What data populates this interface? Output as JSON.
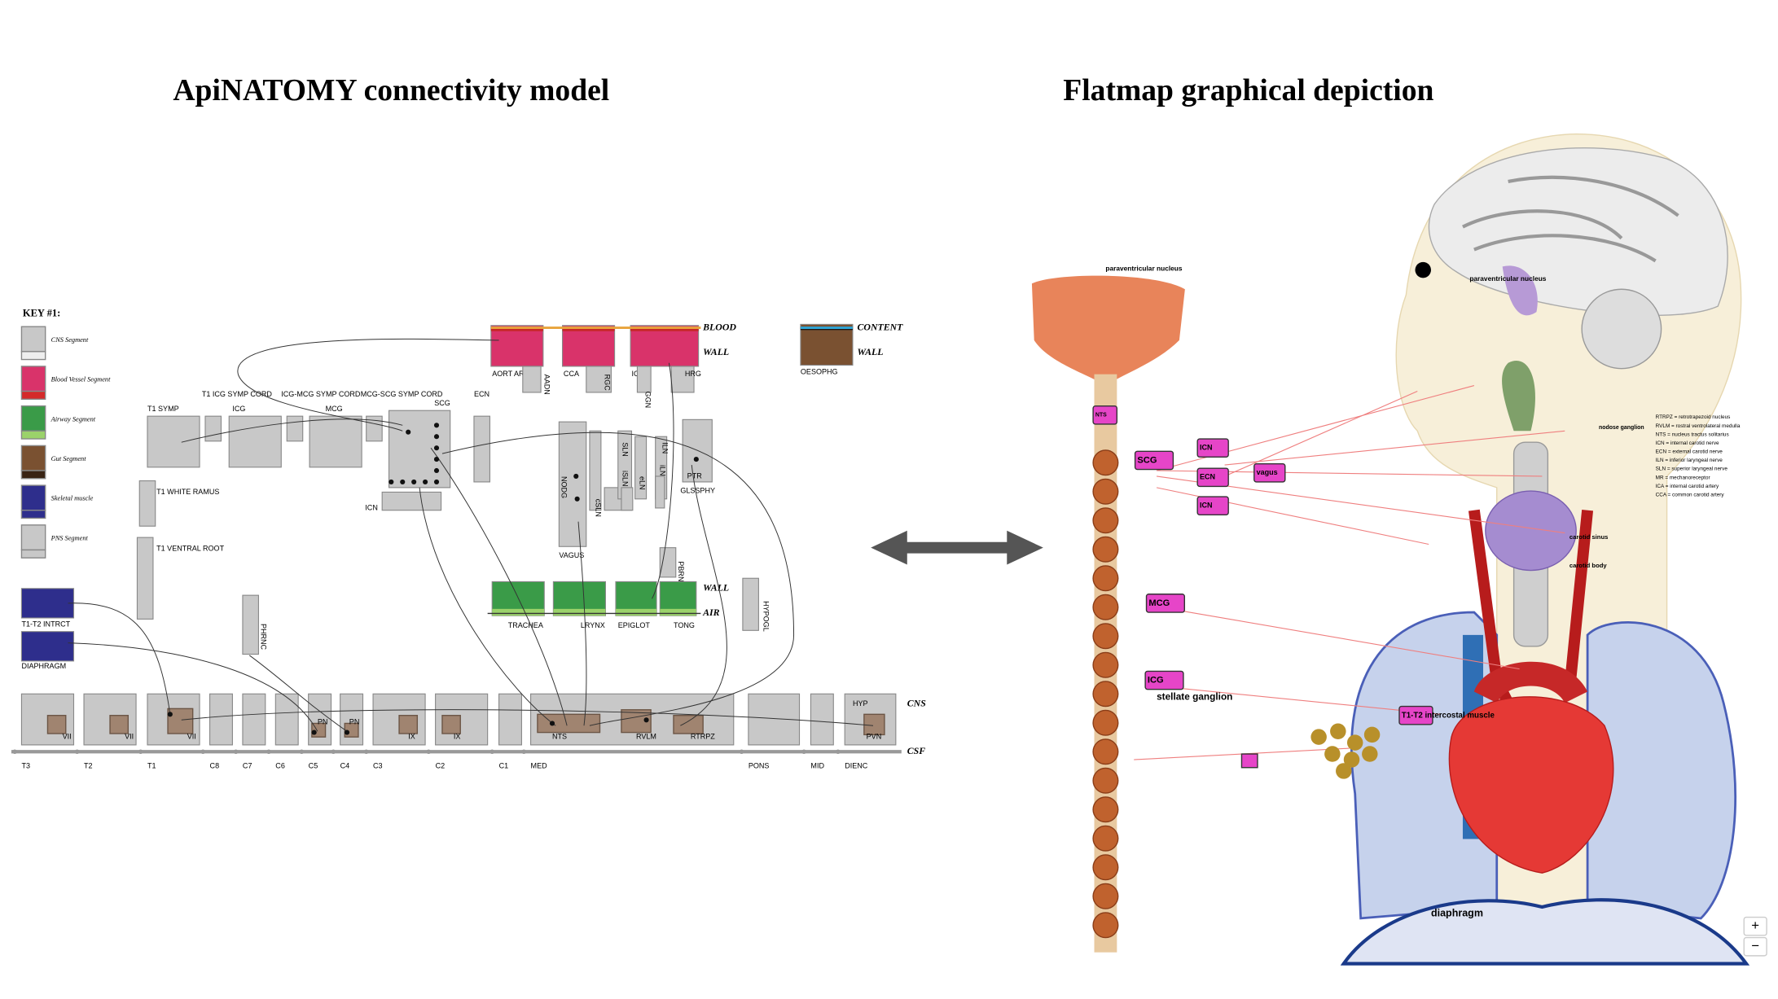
{
  "titles": {
    "left": "ApiNATOMY connectivity model",
    "right": "Flatmap graphical depiction"
  },
  "key": {
    "title": "KEY #1:",
    "items": [
      "CNS Segment",
      "Blood Vessel Segment",
      "Airway Segment",
      "Gut Segment",
      "Skeletal muscle",
      "PNS Segment"
    ]
  },
  "model": {
    "nodes": [
      "T1 SYMP",
      "T1 ICG SYMP CORD",
      "ICG",
      "ICG-MCG SYMP CORD",
      "MCG",
      "MCG-SCG SYMP CORD",
      "SCG",
      "ECN",
      "ICN",
      "AORT ARCH",
      "AADN",
      "CCA",
      "RGC",
      "ICA",
      "GGN",
      "HRG",
      "OESOPHG",
      "VAGUS",
      "NODG",
      "cSLN",
      "SLN",
      "iSLN",
      "eLN",
      "iLN",
      "ILN",
      "PTR",
      "GLSSPHY",
      "PBRN",
      "HYPOGL",
      "TRACHEA",
      "LRYNX",
      "EPIGLOT",
      "TONG",
      "T1 WHITE RAMUS",
      "T1 VENTRAL ROOT",
      "PHRNC",
      "T1-T2 INTRCT",
      "DIAPHRAGM"
    ],
    "layers": {
      "blood": "BLOOD",
      "vessel_wall": "WALL",
      "content": "CONTENT",
      "gut_wall": "WALL",
      "airway_wall": "WALL",
      "air": "AIR",
      "cns": "CNS",
      "csf": "CSF"
    },
    "cns_nuclei": [
      "VII",
      "VII",
      "VII",
      "PN",
      "PN",
      "IX",
      "IX",
      "NTS",
      "RVLM",
      "RTRPZ",
      "HYP",
      "PVN"
    ],
    "cns_segments": [
      "T3",
      "T2",
      "T1",
      "C8",
      "C7",
      "C6",
      "C5",
      "C4",
      "C3",
      "C2",
      "C1",
      "MED",
      "PONS",
      "MID",
      "DIENC"
    ]
  },
  "flatmap": {
    "labels": [
      "paraventricular nucleus",
      "SCG",
      "MCG",
      "ICG",
      "stellate ganglion",
      "ICN",
      "ECN",
      "ICN",
      "vagus",
      "diaphragm",
      "T1-T2 intercostal muscle",
      "nodose ganglion",
      "carotid sinus",
      "carotid body",
      "paraventricular nucleus",
      "NTS"
    ],
    "legend": [
      "RTRPZ = retrotrapezoid nucleus",
      "RVLM = rostral ventrolateral medulla",
      "NTS = nucleus tractus solitarius",
      "ICN = internal carotid nerve",
      "ECN = external carotid nerve",
      "ILN = inferior laryngeal nerve",
      "SLN = superior laryngeal nerve",
      "MR = mechanoreceptor",
      "ICA = internal carotid artery",
      "CCA = common carotid artery"
    ]
  },
  "controls": {
    "zoom_in": "+",
    "zoom_out": "−"
  }
}
